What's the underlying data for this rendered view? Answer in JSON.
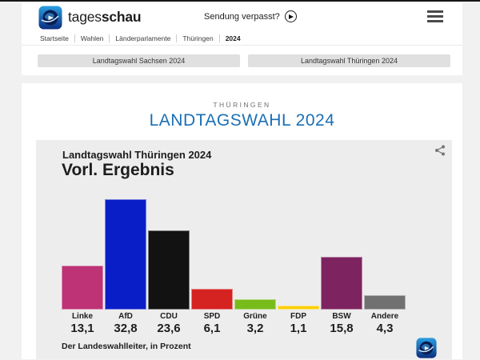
{
  "header": {
    "brand_regular": "tages",
    "brand_bold": "schau",
    "sendung_verpasst": "Sendung verpasst?",
    "breadcrumb": [
      "Startseite",
      "Wahlen",
      "Länderparlamente",
      "Thüringen",
      "2024"
    ]
  },
  "nav_buttons": [
    {
      "label": "Landtagswahl Sachsen 2024"
    },
    {
      "label": "Landtagswahl Thüringen 2024"
    }
  ],
  "page": {
    "kicker": "THÜRINGEN",
    "title": "LANDTAGSWAHL 2024",
    "title_color": "#1a6fb5"
  },
  "chart_data": {
    "type": "bar",
    "title": "Landtagswahl Thüringen 2024",
    "subtitle": "Vorl. Ergebnis",
    "source": "Der Landeswahlleiter, in Prozent",
    "categories": [
      "Linke",
      "AfD",
      "CDU",
      "SPD",
      "Grüne",
      "FDP",
      "BSW",
      "Andere"
    ],
    "values": [
      13.1,
      32.8,
      23.6,
      6.1,
      3.2,
      1.1,
      15.8,
      4.3
    ],
    "value_labels": [
      "13,1",
      "32,8",
      "23,6",
      "6,1",
      "3,2",
      "1,1",
      "15,8",
      "4,3"
    ],
    "colors": [
      "#be3276",
      "#0a1ec8",
      "#121212",
      "#d42321",
      "#78bc1c",
      "#fccf07",
      "#7d2360",
      "#717171"
    ],
    "ylim": [
      0,
      35
    ],
    "grid": false,
    "legend": "none",
    "ylabel": "Prozent",
    "xlabel": ""
  }
}
